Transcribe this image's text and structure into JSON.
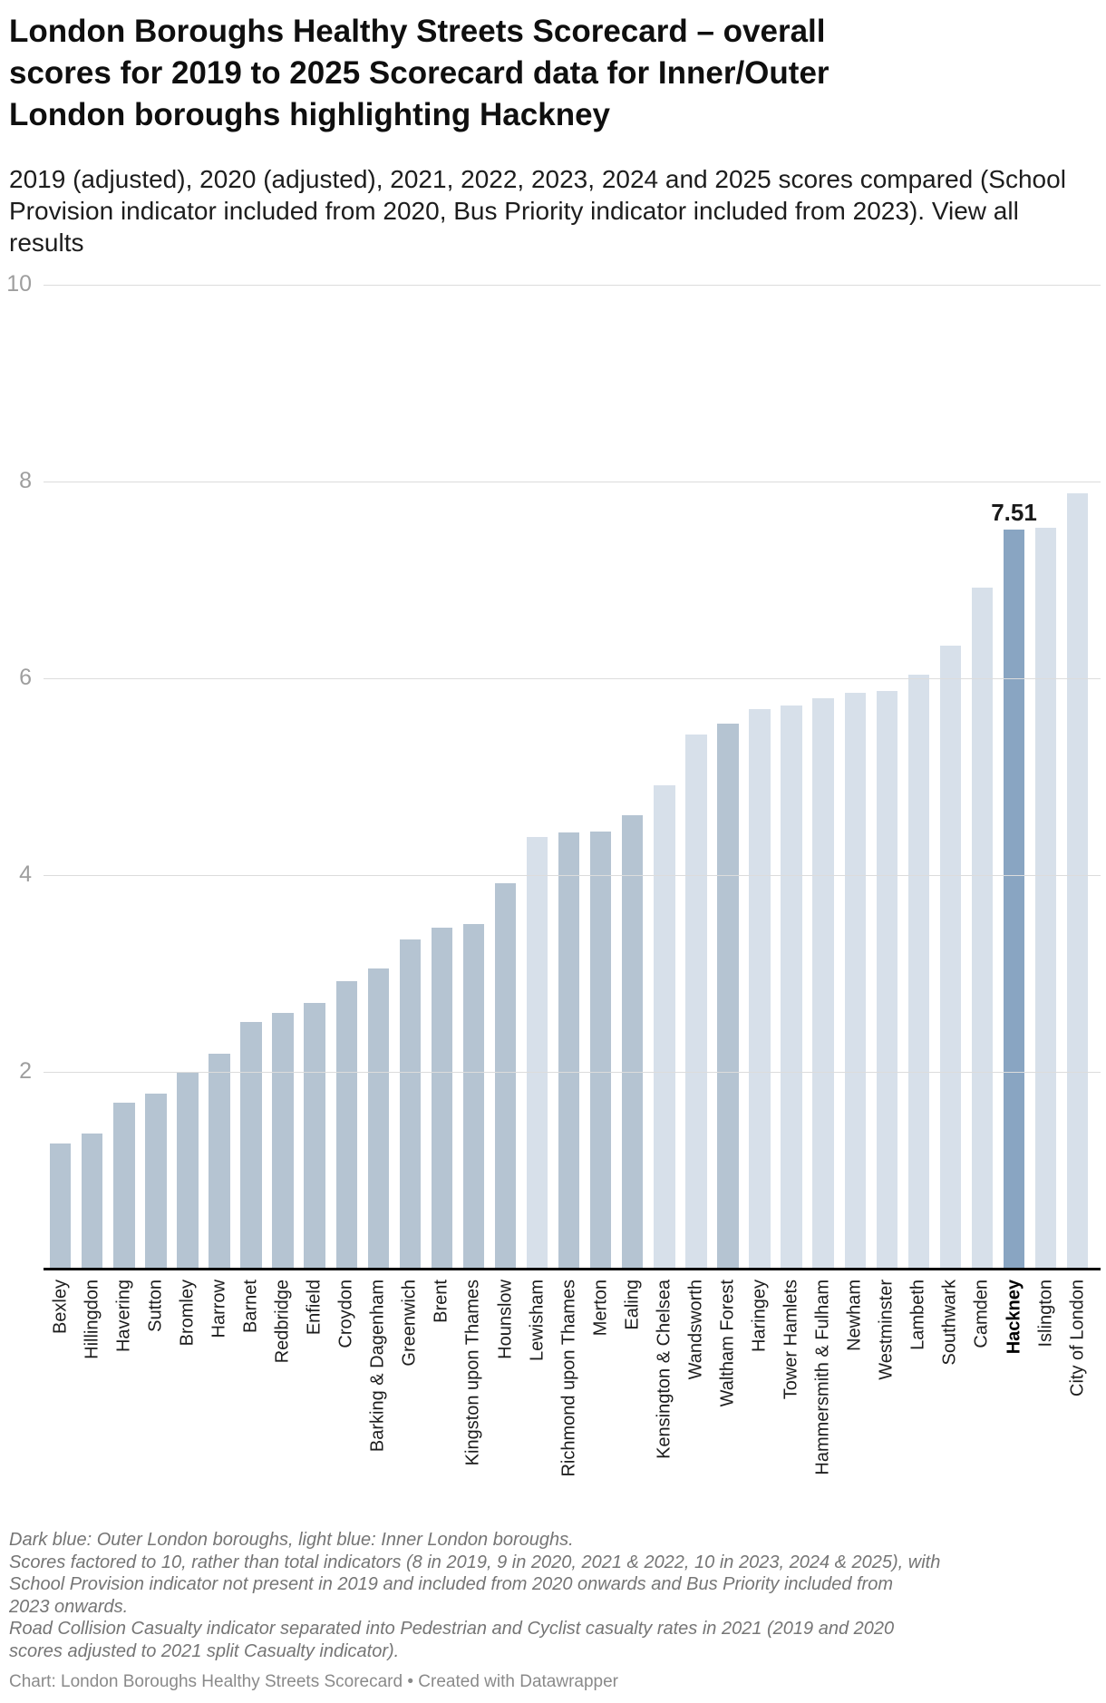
{
  "header": {
    "title_lines": [
      "London Boroughs Healthy Streets Scorecard – overall",
      "scores for 2019 to 2025 Scorecard data for Inner/Outer",
      "London boroughs highlighting Hackney"
    ],
    "subtitle_lines": [
      "2019 (adjusted), 2020 (adjusted), 2021, 2022, 2023, 2024 and 2025 scores compared (School",
      "Provision indicator included from 2020, Bus Priority indicator included from 2023). View all",
      "results"
    ]
  },
  "chart_data": {
    "type": "bar",
    "title": "London Boroughs Healthy Streets Scorecard – overall scores for 2019 to 2025 Scorecard data for Inner/Outer London boroughs highlighting Hackney",
    "ylabel": "",
    "xlabel": "",
    "ylim": [
      0,
      10
    ],
    "yticks": [
      2,
      4,
      6,
      8,
      10
    ],
    "grid": true,
    "legend_position": "none",
    "categories": [
      "Bexley",
      "Hillingdon",
      "Havering",
      "Sutton",
      "Bromley",
      "Harrow",
      "Barnet",
      "Redbridge",
      "Enfield",
      "Croydon",
      "Barking & Dagenham",
      "Greenwich",
      "Brent",
      "Kingston upon Thames",
      "Hounslow",
      "Lewisham",
      "Richmond upon Thames",
      "Merton",
      "Ealing",
      "Kensington & Chelsea",
      "Wandsworth",
      "Waltham Forest",
      "Haringey",
      "Tower Hamlets",
      "Hammersmith & Fulham",
      "Newham",
      "Westminster",
      "Lambeth",
      "Southwark",
      "Camden",
      "Hackney",
      "Islington",
      "City of London"
    ],
    "values": [
      1.27,
      1.37,
      1.69,
      1.78,
      2.0,
      2.18,
      2.51,
      2.6,
      2.7,
      2.92,
      3.05,
      3.35,
      3.47,
      3.5,
      3.92,
      4.39,
      4.43,
      4.44,
      4.61,
      4.91,
      5.43,
      5.54,
      5.69,
      5.72,
      5.8,
      5.85,
      5.87,
      6.04,
      6.33,
      6.92,
      7.51,
      7.53,
      7.88
    ],
    "groups": [
      "outer",
      "outer",
      "outer",
      "outer",
      "outer",
      "outer",
      "outer",
      "outer",
      "outer",
      "outer",
      "outer",
      "outer",
      "outer",
      "outer",
      "outer",
      "inner",
      "outer",
      "outer",
      "outer",
      "inner",
      "inner",
      "outer",
      "inner",
      "inner",
      "inner",
      "inner",
      "inner",
      "inner",
      "inner",
      "inner",
      "highlight",
      "inner",
      "inner"
    ],
    "value_labels": {
      "Hackney": "7.51"
    },
    "colors": {
      "outer": "#b5c4d2",
      "inner": "#d7e0ea",
      "highlight": "#89a5c2"
    }
  },
  "notes_lines": [
    "Dark blue: Outer London boroughs, light blue: Inner London boroughs.",
    "Scores factored to 10, rather than total indicators (8 in 2019, 9 in 2020, 2021 & 2022, 10 in 2023, 2024 & 2025), with",
    "School Provision indicator not present in 2019 and included from 2020 onwards and Bus Priority included from",
    "2023 onwards.",
    "Road Collision Casualty indicator separated into Pedestrian and Cyclist casualty rates in 2021 (2019 and 2020",
    "scores adjusted to 2021 split Casualty indicator)."
  ],
  "attribution": "Chart: London Boroughs Healthy Streets Scorecard • Created with Datawrapper"
}
